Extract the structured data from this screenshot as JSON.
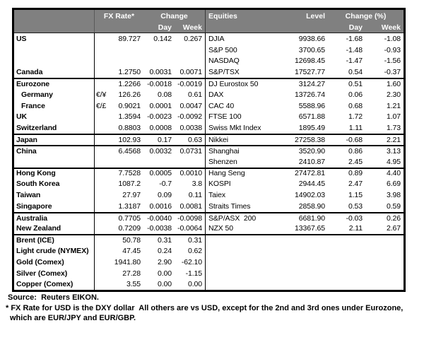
{
  "colors": {
    "header_bg": "#808080",
    "header_text": "#ffffff",
    "border": "#000000"
  },
  "table": {
    "header": {
      "fx_rate": "FX Rate*",
      "fx_change": "Change",
      "fx_day": "Day",
      "fx_week": "Week",
      "equities": "Equities",
      "level": "Level",
      "eq_change": "Change (%)",
      "eq_day": "Day",
      "eq_week": "Week"
    },
    "rows": [
      {
        "fx_label": "US",
        "fx_pair": "",
        "fx_rate": "89.727",
        "fx_day": "0.142",
        "fx_week": "0.267",
        "eq_label": "DJIA",
        "eq_level": "9938.66",
        "eq_day": "-1.68",
        "eq_week": "-1.08"
      },
      {
        "fx_label": "",
        "fx_pair": "",
        "fx_rate": "",
        "fx_day": "",
        "fx_week": "",
        "eq_label": "S&P 500",
        "eq_level": "3700.65",
        "eq_day": "-1.48",
        "eq_week": "-0.93"
      },
      {
        "fx_label": "",
        "fx_pair": "",
        "fx_rate": "",
        "fx_day": "",
        "fx_week": "",
        "eq_label": "NASDAQ",
        "eq_level": "12698.45",
        "eq_day": "-1.47",
        "eq_week": "-1.56"
      },
      {
        "fx_label": "Canada",
        "fx_pair": "",
        "fx_rate": "1.2750",
        "fx_day": "0.0031",
        "fx_week": "0.0071",
        "eq_label": "S&P/TSX",
        "eq_level": "17527.77",
        "eq_day": "0.54",
        "eq_week": "-0.37"
      },
      {
        "group_start": true,
        "fx_label": "Eurozone",
        "fx_pair": "",
        "fx_rate": "1.2266",
        "fx_day": "-0.0018",
        "fx_week": "-0.0019",
        "eq_label": "DJ Eurostox 50",
        "eq_level": "3124.27",
        "eq_day": "0.51",
        "eq_week": "1.60"
      },
      {
        "indent": true,
        "fx_label": "Germany",
        "fx_pair": "€/¥",
        "fx_rate": "126.26",
        "fx_day": "0.08",
        "fx_week": "0.61",
        "eq_label": "DAX",
        "eq_level": "13726.74",
        "eq_day": "0.06",
        "eq_week": "2.30"
      },
      {
        "indent": true,
        "fx_label": "France",
        "fx_pair": "€/£",
        "fx_rate": "0.9021",
        "fx_day": "0.0001",
        "fx_week": "0.0047",
        "eq_label": "CAC 40",
        "eq_level": "5588.96",
        "eq_day": "0.68",
        "eq_week": "1.21"
      },
      {
        "fx_label": "UK",
        "fx_pair": "",
        "fx_rate": "1.3594",
        "fx_day": "-0.0023",
        "fx_week": "-0.0092",
        "eq_label": "FTSE 100",
        "eq_level": "6571.88",
        "eq_day": "1.72",
        "eq_week": "1.07"
      },
      {
        "fx_label": "Switzerland",
        "fx_pair": "",
        "fx_rate": "0.8803",
        "fx_day": "0.0008",
        "fx_week": "0.0038",
        "eq_label": "Swiss Mkt Index",
        "eq_level": "1895.49",
        "eq_day": "1.11",
        "eq_week": "1.73"
      },
      {
        "group_start": true,
        "fx_label": "Japan",
        "fx_pair": "",
        "fx_rate": "102.93",
        "fx_day": "0.17",
        "fx_week": "0.63",
        "eq_label": "Nikkei",
        "eq_level": "27258.38",
        "eq_day": "-0.68",
        "eq_week": "2.21"
      },
      {
        "group_start": true,
        "fx_label": "China",
        "fx_pair": "",
        "fx_rate": "6.4568",
        "fx_day": "0.0032",
        "fx_week": "0.0731",
        "eq_label": "Shanghai",
        "eq_level": "3520.90",
        "eq_day": "0.86",
        "eq_week": "3.13"
      },
      {
        "fx_label": "",
        "fx_pair": "",
        "fx_rate": "",
        "fx_day": "",
        "fx_week": "",
        "eq_label": "Shenzen",
        "eq_level": "2410.87",
        "eq_day": "2.45",
        "eq_week": "4.95"
      },
      {
        "group_start": true,
        "fx_label": "Hong Kong",
        "fx_pair": "",
        "fx_rate": "7.7528",
        "fx_day": "0.0005",
        "fx_week": "0.0010",
        "eq_label": "Hang Seng",
        "eq_level": "27472.81",
        "eq_day": "0.89",
        "eq_week": "4.40"
      },
      {
        "fx_label": "South Korea",
        "fx_pair": "",
        "fx_rate": "1087.2",
        "fx_day": "-0.7",
        "fx_week": "3.8",
        "eq_label": "KOSPI",
        "eq_level": "2944.45",
        "eq_day": "2.47",
        "eq_week": "6.69"
      },
      {
        "fx_label": "Taiwan",
        "fx_pair": "",
        "fx_rate": "27.97",
        "fx_day": "0.09",
        "fx_week": "0.11",
        "eq_label": "Taiex",
        "eq_level": "14902.03",
        "eq_day": "1.15",
        "eq_week": "3.98"
      },
      {
        "fx_label": "Singapore",
        "fx_pair": "",
        "fx_rate": "1.3187",
        "fx_day": "0.0016",
        "fx_week": "0.0081",
        "eq_label": "Straits Times",
        "eq_level": "2858.90",
        "eq_day": "0.53",
        "eq_week": "0.59"
      },
      {
        "group_start": true,
        "fx_label": "Australia",
        "fx_pair": "",
        "fx_rate": "0.7705",
        "fx_day": "-0.0040",
        "fx_week": "-0.0098",
        "eq_label": "S&P/ASX  200",
        "eq_level": "6681.90",
        "eq_day": "-0.03",
        "eq_week": "0.26"
      },
      {
        "fx_label": "New Zealand",
        "fx_pair": "",
        "fx_rate": "0.7209",
        "fx_day": "-0.0038",
        "fx_week": "-0.0064",
        "eq_label": "NZX 50",
        "eq_level": "13367.65",
        "eq_day": "2.11",
        "eq_week": "2.67"
      },
      {
        "group_start": true,
        "fx_label": "Brent (ICE)",
        "fx_pair": "",
        "fx_rate": "50.78",
        "fx_day": "0.31",
        "fx_week": "0.31",
        "eq_label": "",
        "eq_level": "",
        "eq_day": "",
        "eq_week": ""
      },
      {
        "fx_label": "Light crude (NYMEX)",
        "fx_pair": "",
        "fx_rate": "47.45",
        "fx_day": "0.24",
        "fx_week": "0.62",
        "eq_label": "",
        "eq_level": "",
        "eq_day": "",
        "eq_week": ""
      },
      {
        "fx_label": "Gold (Comex)",
        "fx_pair": "",
        "fx_rate": "1941.80",
        "fx_day": "2.90",
        "fx_week": "-62.10",
        "eq_label": "",
        "eq_level": "",
        "eq_day": "",
        "eq_week": ""
      },
      {
        "fx_label": "Silver (Comex)",
        "fx_pair": "",
        "fx_rate": "27.28",
        "fx_day": "0.00",
        "fx_week": "-1.15",
        "eq_label": "",
        "eq_level": "",
        "eq_day": "",
        "eq_week": ""
      },
      {
        "fx_label": "Copper (Comex)",
        "fx_pair": "",
        "fx_rate": "3.55",
        "fx_day": "0.00",
        "fx_week": "0.00",
        "eq_label": "",
        "eq_level": "",
        "eq_day": "",
        "eq_week": ""
      }
    ]
  },
  "footer": {
    "source": "Source:  Reuters EIKON.",
    "footnote_line1": "* FX Rate for USD is the DXY dollar  All others are vs USD, except for the 2nd and 3rd ones under Eurozone,",
    "footnote_line2": "which are EUR/JPY and EUR/GBP."
  }
}
